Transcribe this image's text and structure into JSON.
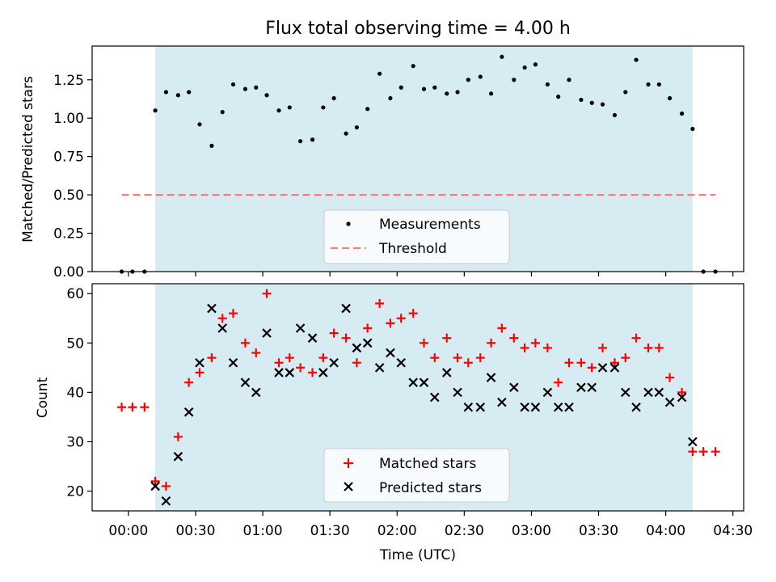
{
  "title": "Flux total observing time = 4.00 h",
  "chart_data": [
    {
      "type": "scatter",
      "ylabel": "Matched/Predicted stars",
      "ylim": [
        0,
        1.47
      ],
      "yticks": [
        "0.00",
        "0.25",
        "0.50",
        "0.75",
        "1.00",
        "1.25"
      ],
      "ytick_values": [
        0,
        0.25,
        0.5,
        0.75,
        1.0,
        1.25
      ],
      "shaded_span": [
        0.2,
        4.2
      ],
      "threshold": {
        "name": "Threshold",
        "value": 0.5,
        "color": "#f08080",
        "style": "dashed"
      },
      "legend": [
        "Measurements",
        "Threshold"
      ],
      "legend_position": "lower center",
      "series": [
        {
          "name": "Measurements",
          "color": "#000000",
          "marker": "dot",
          "x": [
            -0.05,
            0.03,
            0.12,
            0.2,
            0.28,
            0.37,
            0.45,
            0.53,
            0.62,
            0.7,
            0.78,
            0.87,
            0.95,
            1.03,
            1.12,
            1.2,
            1.28,
            1.37,
            1.45,
            1.53,
            1.62,
            1.7,
            1.78,
            1.87,
            1.95,
            2.03,
            2.12,
            2.2,
            2.28,
            2.37,
            2.45,
            2.53,
            2.62,
            2.7,
            2.78,
            2.87,
            2.95,
            3.03,
            3.12,
            3.2,
            3.28,
            3.37,
            3.45,
            3.53,
            3.62,
            3.7,
            3.78,
            3.87,
            3.95,
            4.03,
            4.12,
            4.2,
            4.28,
            4.37
          ],
          "y": [
            0,
            0,
            0,
            1.05,
            1.17,
            1.15,
            1.17,
            0.96,
            0.82,
            1.04,
            1.22,
            1.19,
            1.2,
            1.15,
            1.05,
            1.07,
            0.85,
            0.86,
            1.07,
            1.13,
            0.9,
            0.94,
            1.06,
            1.29,
            1.13,
            1.2,
            1.34,
            1.19,
            1.2,
            1.16,
            1.17,
            1.25,
            1.27,
            1.16,
            1.4,
            1.25,
            1.33,
            1.35,
            1.22,
            1.14,
            1.25,
            1.12,
            1.1,
            1.09,
            1.02,
            1.17,
            1.38,
            1.22,
            1.22,
            1.13,
            1.03,
            0.93,
            0,
            0
          ]
        }
      ]
    },
    {
      "type": "scatter",
      "xlabel": "Time (UTC)",
      "ylabel": "Count",
      "ylim": [
        16,
        62
      ],
      "yticks": [
        "20",
        "30",
        "40",
        "50",
        "60"
      ],
      "ytick_values": [
        20,
        30,
        40,
        50,
        60
      ],
      "xlim": [
        -0.27,
        4.58
      ],
      "xticks": [
        "00:00",
        "00:30",
        "01:00",
        "01:30",
        "02:00",
        "02:30",
        "03:00",
        "03:30",
        "04:00",
        "04:30"
      ],
      "xtick_values": [
        0,
        0.5,
        1.0,
        1.5,
        2.0,
        2.5,
        3.0,
        3.5,
        4.0,
        4.5
      ],
      "shaded_span": [
        0.2,
        4.2
      ],
      "legend": [
        "Matched stars",
        "Predicted stars"
      ],
      "legend_position": "lower center",
      "series": [
        {
          "name": "Matched stars",
          "color": "#ff0000",
          "marker": "plus",
          "x": [
            -0.05,
            0.03,
            0.12,
            0.2,
            0.28,
            0.37,
            0.45,
            0.53,
            0.62,
            0.7,
            0.78,
            0.87,
            0.95,
            1.03,
            1.12,
            1.2,
            1.28,
            1.37,
            1.45,
            1.53,
            1.62,
            1.7,
            1.78,
            1.87,
            1.95,
            2.03,
            2.12,
            2.2,
            2.28,
            2.37,
            2.45,
            2.53,
            2.62,
            2.7,
            2.78,
            2.87,
            2.95,
            3.03,
            3.12,
            3.2,
            3.28,
            3.37,
            3.45,
            3.53,
            3.62,
            3.7,
            3.78,
            3.87,
            3.95,
            4.03,
            4.12,
            4.2,
            4.28,
            4.37
          ],
          "y": [
            37,
            37,
            37,
            22,
            21,
            31,
            42,
            44,
            47,
            55,
            56,
            50,
            48,
            60,
            46,
            47,
            45,
            44,
            47,
            52,
            51,
            46,
            53,
            58,
            54,
            55,
            56,
            50,
            47,
            51,
            47,
            46,
            47,
            50,
            53,
            51,
            49,
            50,
            49,
            42,
            46,
            46,
            45,
            49,
            46,
            47,
            51,
            49,
            49,
            43,
            40,
            28,
            28,
            28
          ]
        },
        {
          "name": "Predicted stars",
          "color": "#000000",
          "marker": "x",
          "x": [
            0.2,
            0.28,
            0.37,
            0.45,
            0.53,
            0.62,
            0.7,
            0.78,
            0.87,
            0.95,
            1.03,
            1.12,
            1.2,
            1.28,
            1.37,
            1.45,
            1.53,
            1.62,
            1.7,
            1.78,
            1.87,
            1.95,
            2.03,
            2.12,
            2.2,
            2.28,
            2.37,
            2.45,
            2.53,
            2.62,
            2.7,
            2.78,
            2.87,
            2.95,
            3.03,
            3.12,
            3.2,
            3.28,
            3.37,
            3.45,
            3.53,
            3.62,
            3.7,
            3.78,
            3.87,
            3.95,
            4.03,
            4.12,
            4.2
          ],
          "y": [
            21,
            18,
            27,
            36,
            46,
            57,
            53,
            46,
            42,
            40,
            52,
            44,
            44,
            53,
            51,
            44,
            46,
            57,
            49,
            50,
            45,
            48,
            46,
            42,
            42,
            39,
            44,
            40,
            37,
            37,
            43,
            38,
            41,
            37,
            37,
            40,
            37,
            37,
            41,
            41,
            45,
            45,
            40,
            37,
            40,
            40,
            38,
            39,
            30
          ]
        }
      ]
    }
  ],
  "colors": {
    "span": "#add8e6",
    "span_alpha": 0.5,
    "threshold": "#f08080"
  }
}
